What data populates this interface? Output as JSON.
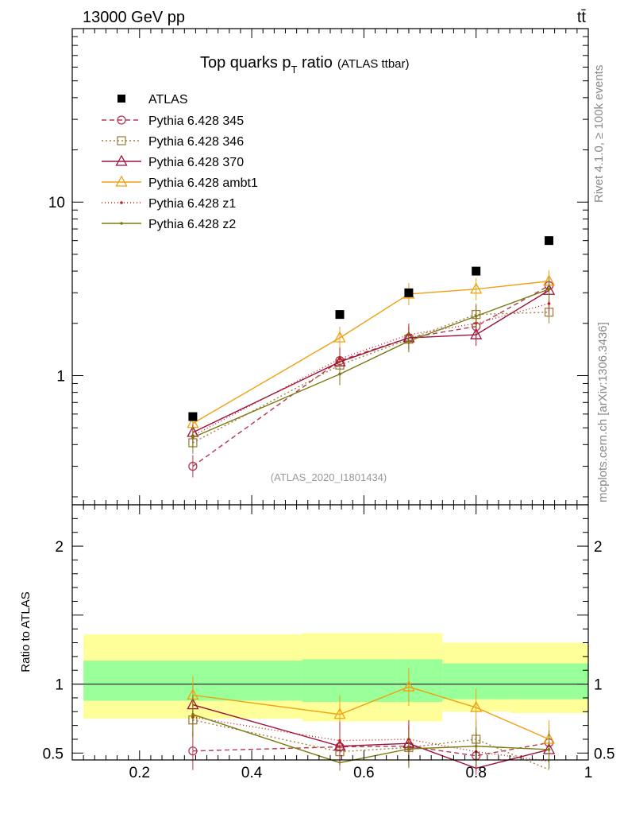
{
  "header": {
    "left": "13000 GeV pp",
    "right": "tt̄"
  },
  "side_text": {
    "rivet": "Rivet 4.1.0, ≥ 100k events",
    "mcplots": "mcplots.cern.ch [arXiv:1306.3436]"
  },
  "chart_data": {
    "type": "line",
    "title": "Top quarks p",
    "title_sub": "T",
    "title_rest": " ratio",
    "title_small": "(ATLAS ttbar)",
    "analysis": "(ATLAS_2020_I1801434)",
    "xlim": [
      0.08,
      1.0
    ],
    "x_ticks": [
      "0.2",
      "0.4",
      "0.6",
      "0.8",
      "1"
    ],
    "x_tick_values": [
      0.2,
      0.4,
      0.6,
      0.8,
      1.0
    ],
    "main_ylim_log": [
      0.18,
      100
    ],
    "main_y_ticks": [
      "1",
      "10"
    ],
    "main_y_tick_values": [
      1,
      10
    ],
    "ratio_ylabel": "Ratio to ATLAS",
    "ratio_ylim": [
      0.45,
      2.3
    ],
    "ratio_y_ticks": [
      "0.5",
      "1",
      "2"
    ],
    "ratio_y_tick_values": [
      0.5,
      1,
      2
    ],
    "x": [
      0.295,
      0.557,
      0.68,
      0.8,
      0.93
    ],
    "bin_edges": [
      0.1,
      0.49,
      0.74,
      0.86,
      1.0
    ],
    "atlas": {
      "name": "ATLAS",
      "values": [
        0.58,
        2.25,
        3.0,
        4.0,
        6.0
      ],
      "band_green": [
        [
          0.88,
          1.17
        ],
        [
          0.87,
          1.18
        ],
        [
          0.87,
          1.18
        ],
        [
          0.89,
          1.15
        ],
        [
          0.89,
          1.15
        ]
      ],
      "band_yellow": [
        [
          0.75,
          1.36
        ],
        [
          0.73,
          1.37
        ],
        [
          0.73,
          1.37
        ],
        [
          0.8,
          1.3
        ],
        [
          0.79,
          1.3
        ]
      ]
    },
    "series": [
      {
        "name": "Pythia 6.428 345",
        "color": "#b03a50",
        "dash": "6,4",
        "marker": "circle",
        "values": [
          0.3,
          1.22,
          1.65,
          1.92,
          3.3
        ],
        "ratio": [
          0.515,
          0.545,
          0.55,
          0.48,
          0.575
        ]
      },
      {
        "name": "Pythia 6.428 346",
        "color": "#a08040",
        "dash": "2,3",
        "marker": "square",
        "values": [
          0.41,
          1.15,
          1.62,
          2.25,
          2.32
        ],
        "ratio": [
          0.74,
          0.51,
          0.54,
          0.6,
          0.38
        ]
      },
      {
        "name": "Pythia 6.428 370",
        "color": "#a0103a",
        "dash": "",
        "marker": "triangle",
        "values": [
          0.47,
          1.2,
          1.65,
          1.72,
          3.1
        ],
        "ratio": [
          0.85,
          0.55,
          0.57,
          0.39,
          0.525
        ]
      },
      {
        "name": "Pythia 6.428 ambt1",
        "color": "#f0a010",
        "dash": "",
        "marker": "triangle",
        "values": [
          0.53,
          1.65,
          2.95,
          3.15,
          3.5
        ],
        "ratio": [
          0.92,
          0.78,
          0.98,
          0.83,
          0.6
        ]
      },
      {
        "name": "Pythia 6.428 z1",
        "color": "#c02020",
        "dash": "1,3",
        "marker": "dot",
        "values": [
          0.45,
          1.25,
          1.72,
          2.0,
          2.6
        ],
        "ratio": [
          0.76,
          0.59,
          0.6,
          0.51,
          0.44
        ]
      },
      {
        "name": "Pythia 6.428 z2",
        "color": "#7a7a10",
        "dash": "",
        "marker": "dot",
        "values": [
          0.44,
          1.02,
          1.58,
          2.2,
          3.15
        ],
        "ratio": [
          0.78,
          0.43,
          0.53,
          0.55,
          0.525
        ]
      }
    ]
  }
}
